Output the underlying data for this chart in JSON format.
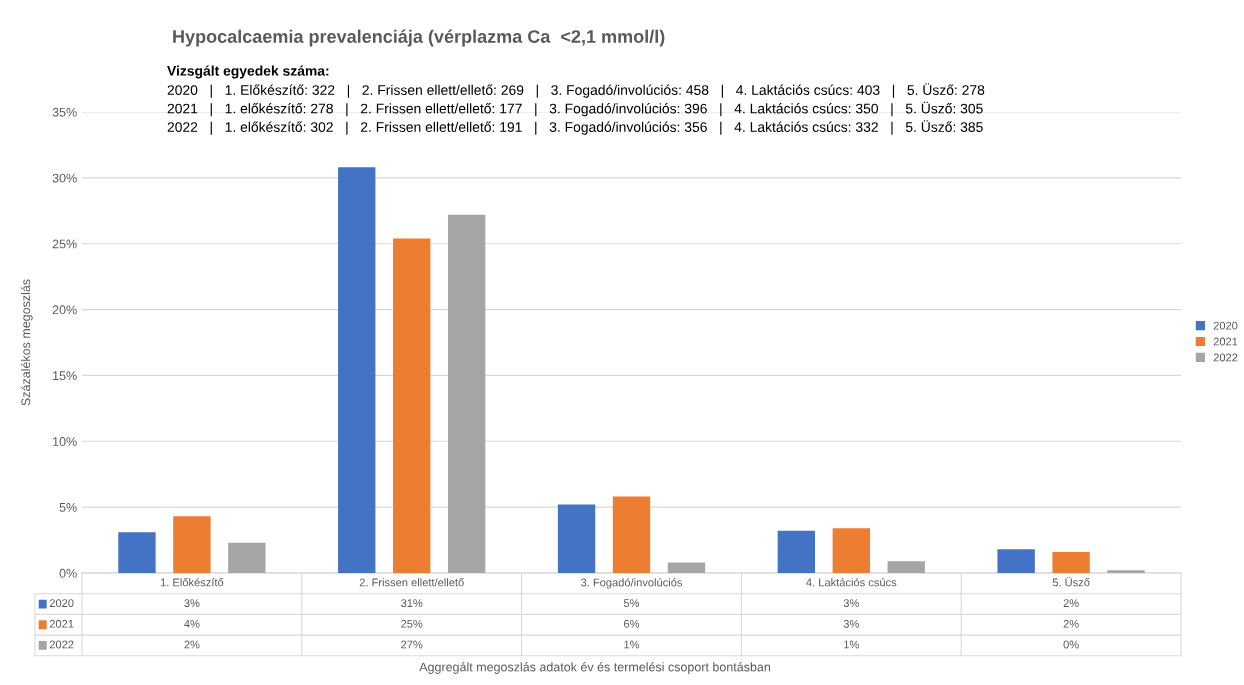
{
  "chart_data": {
    "type": "bar",
    "title": "Hypocalcaemia prevalenciája (vérplazma Ca  <2,1 mmol/l)",
    "annotations": [
      "Vizsgált egyedek száma:",
      "2020   |   1. Előkészítő: 322   |   2. Frissen ellett/ellető: 269   |   3. Fogadó/involúciós: 458   |   4. Laktációs csúcs: 403   |   5. Üsző: 278",
      "2021   |   1. előkészítő: 278   |   2. Frissen ellett/ellető: 177   |   3. Fogadó/involúciós: 396   |   4. Laktációs csúcs: 350   |   5. Üsző: 305",
      "2022   |   1. előkészítő: 302   |   2. Frissen ellett/ellető: 191   |   3. Fogadó/involúciós: 356   |   4. Laktációs csúcs: 332   |   5. Üsző: 385",
      "Aggregált megoszlás adatok év és termelési csoport bontásban"
    ],
    "ylabel": "Százalékos megoszlás",
    "categories": [
      "1. Előkészítő",
      "2. Frissen ellett/ellető",
      "3. Fogadó/involúciós",
      "4. Laktációs csúcs",
      "5. Üsző"
    ],
    "series": [
      {
        "name": "2020",
        "color": "#4472c4",
        "values": [
          3.1,
          30.8,
          5.2,
          3.2,
          1.8
        ],
        "value_labels": [
          "3%",
          "31%",
          "5%",
          "3%",
          "2%"
        ]
      },
      {
        "name": "2021",
        "color": "#ed7d31",
        "values": [
          4.3,
          25.4,
          5.8,
          3.4,
          1.6
        ],
        "value_labels": [
          "4%",
          "25%",
          "6%",
          "3%",
          "2%"
        ]
      },
      {
        "name": "2022",
        "color": "#a5a5a5",
        "values": [
          2.3,
          27.2,
          0.8,
          0.9,
          0.2
        ],
        "value_labels": [
          "2%",
          "27%",
          "1%",
          "1%",
          "0%"
        ]
      }
    ],
    "ylim": [
      0,
      35
    ],
    "yticks": [
      {
        "value": 0,
        "label": "0%"
      },
      {
        "value": 5,
        "label": "5%"
      },
      {
        "value": 10,
        "label": "10%"
      },
      {
        "value": 15,
        "label": "15%"
      },
      {
        "value": 20,
        "label": "20%"
      },
      {
        "value": 25,
        "label": "25%"
      },
      {
        "value": 30,
        "label": "30%"
      },
      {
        "value": 35,
        "label": "35%"
      }
    ],
    "grid": "y",
    "legend": "right"
  }
}
